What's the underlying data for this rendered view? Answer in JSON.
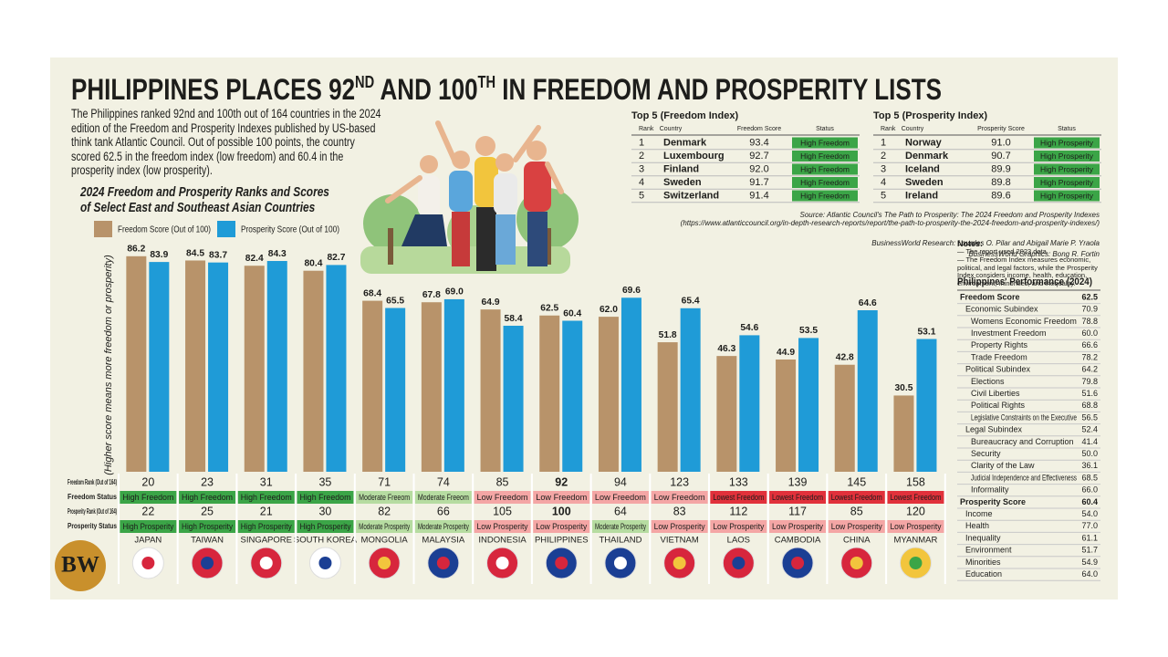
{
  "header": {
    "title": [
      "PHILIPPINES PLACES 92",
      "ND",
      " AND 100",
      "TH",
      " IN FREEDOM AND PROSPERITY LISTS"
    ],
    "intro": "The Philippines ranked 92nd and 100th out of 164 countries in the 2024 edition of the Freedom and Prosperity Indexes published by US-based think tank Atlantic Council. Out of possible 100 points, the country scored 62.5 in the freedom index (low freedom) and 60.4 in the prosperity index (low prosperity).",
    "logo": "BW"
  },
  "status_colors": {
    "High Freedom": {
      "fill": "#3ba547",
      "text": "#ffffff"
    },
    "Moderate Freeom": {
      "fill": "#b6dca1",
      "text": "#1d1d1b"
    },
    "Low Freedom": {
      "fill": "#f4a6a5",
      "text": "#ffffff"
    },
    "Lowest Freedom": {
      "fill": "#e1313b",
      "text": "#ffffff"
    },
    "High Prosperity": {
      "fill": "#3ba547",
      "text": "#ffffff"
    },
    "Moderate Prosperity": {
      "fill": "#b6dca1",
      "text": "#1d1d1b"
    },
    "Low Prosperity": {
      "fill": "#f4a6a5",
      "text": "#ffffff"
    }
  },
  "chart_data": {
    "type": "bar",
    "title": "2024 Freedom and Prosperity Ranks and Scores of Select East and Southeast Asian Countries",
    "ylabel": "(Higher score means more freedom or prosperity)",
    "categories": [
      "JAPAN",
      "TAIWAN",
      "SINGAPORE",
      "SOUTH KOREA",
      "MONGOLIA",
      "MALAYSIA",
      "INDONESIA",
      "PHILIPPINES",
      "THAILAND",
      "VIETNAM",
      "LAOS",
      "CAMBODIA",
      "CHINA",
      "MYANMAR"
    ],
    "highlight": "PHILIPPINES",
    "highlight_color": "#1e9ad6",
    "series": [
      {
        "name": "Freedom Score (Out of 100)",
        "color": "#b8936a",
        "values": [
          86.2,
          84.5,
          82.4,
          80.4,
          68.4,
          67.8,
          64.9,
          62.5,
          62.0,
          51.8,
          46.3,
          44.9,
          42.8,
          30.5
        ],
        "value_labels": [
          "86.2",
          "84.5",
          "82.4",
          "80.4",
          "68.4",
          "67.8",
          "64.9",
          "62.5",
          "62.0",
          "51.8",
          "46.3",
          "44.9",
          "42.8",
          "30.5"
        ]
      },
      {
        "name": "Prosperity Score (Out of 100)",
        "color": "#1f9bd7",
        "values": [
          83.9,
          83.7,
          84.3,
          82.7,
          65.5,
          69.0,
          58.4,
          60.4,
          69.6,
          65.4,
          54.6,
          53.5,
          64.6,
          53.1
        ],
        "value_labels": [
          "83.9",
          "83.7",
          "84.3",
          "82.7",
          "65.5",
          "69.0",
          "58.4",
          "60.4",
          "69.6",
          "65.4",
          "54.6",
          "53.5",
          "64.6",
          "53.1"
        ]
      }
    ],
    "ylim": [
      0,
      100
    ],
    "grid": false,
    "table_rows": [
      {
        "label": "Freedom Rank (Out of 164)",
        "values": [
          20,
          23,
          31,
          35,
          71,
          74,
          85,
          92,
          94,
          123,
          133,
          139,
          145,
          158
        ]
      },
      {
        "label": "Freedom Status",
        "values": [
          "High Freedom",
          "High Freedom",
          "High Freedom",
          "High Freedom",
          "Moderate Freeom",
          "Moderate Freeom",
          "Low Freedom",
          "Low Freedom",
          "Low Freedom",
          "Low Freedom",
          "Lowest Freedom",
          "Lowest Freedom",
          "Lowest Freedom",
          "Lowest Freedom"
        ]
      },
      {
        "label": "Prosperity Rank (Out of 164)",
        "values": [
          22,
          25,
          21,
          30,
          82,
          66,
          105,
          100,
          64,
          83,
          112,
          117,
          85,
          120
        ]
      },
      {
        "label": "Prosperity Status",
        "values": [
          "High Prosperity",
          "High Prosperity",
          "High Prosperity",
          "High Prosperity",
          "Moderate Prosperity",
          "Moderate Prosperity",
          "Low Prosperity",
          "Low Prosperity",
          "Moderate Prosperity",
          "Low Prosperity",
          "Low Prosperity",
          "Low Prosperity",
          "Low Prosperity",
          "Low Prosperity"
        ]
      }
    ]
  },
  "top_tables": [
    {
      "title": "Top 5 (Freedom Index)",
      "columns": [
        "Rank",
        "Country",
        "Freedom Score",
        "Status"
      ],
      "rows": [
        [
          "1",
          "Denmark",
          "93.4",
          "High Freedom"
        ],
        [
          "2",
          "Luxembourg",
          "92.7",
          "High Freedom"
        ],
        [
          "3",
          "Finland",
          "92.0",
          "High Freedom"
        ],
        [
          "4",
          "Sweden",
          "91.7",
          "High Freedom"
        ],
        [
          "5",
          "Switzerland",
          "91.4",
          "High Freedom"
        ]
      ]
    },
    {
      "title": "Top 5 (Prosperity Index)",
      "columns": [
        "Rank",
        "Country",
        "Prosperity Score",
        "Status"
      ],
      "rows": [
        [
          "1",
          "Norway",
          "91.0",
          "High Prosperity"
        ],
        [
          "2",
          "Denmark",
          "90.7",
          "High Prosperity"
        ],
        [
          "3",
          "Iceland",
          "89.9",
          "High Prosperity"
        ],
        [
          "4",
          "Sweden",
          "89.8",
          "High Prosperity"
        ],
        [
          "5",
          "Ireland",
          "89.6",
          "High Prosperity"
        ]
      ]
    }
  ],
  "credits": {
    "source": "Source: Atlantic Council's The Path to Prosperity: The 2024 Freedom and Prosperity Indexes",
    "source_url": "(https://www.atlanticcouncil.org/in-depth-research-reports/report/the-path-to-prosperity-the-2024-freedom-and-prosperity-indexes/)",
    "research": "BusinessWorld Research: Lourdes O. Pilar and Abigail Marie P. Yraola",
    "graphics": "BusinessWorld Graphics: Bong R. Fortin"
  },
  "notes": {
    "title": "Notes:",
    "items": [
      "— The report used 2023 data.",
      "— The Freedom Index measures economic, political, and legal factors, while the Prosperity Index considers income, health, education, environment, minorities, and inequality."
    ]
  },
  "performance": {
    "title": "Philippines' Performance (2024)",
    "rows": [
      {
        "label": "Freedom Score",
        "value": "62.5",
        "children": [
          {
            "label": "Economic Subindex",
            "value": "70.9",
            "children": [
              {
                "label": "Womens Economic Freedom",
                "value": "78.8"
              },
              {
                "label": "Investment Freedom",
                "value": "60.0"
              },
              {
                "label": "Property Rights",
                "value": "66.6"
              },
              {
                "label": "Trade Freedom",
                "value": "78.2"
              }
            ]
          },
          {
            "label": "Political Subindex",
            "value": "64.2",
            "children": [
              {
                "label": "Elections",
                "value": "79.8"
              },
              {
                "label": "Civil Liberties",
                "value": "51.6"
              },
              {
                "label": "Political Rights",
                "value": "68.8"
              },
              {
                "label": "Legislative Constraints on the Executive",
                "value": "56.5"
              }
            ]
          },
          {
            "label": "Legal Subindex",
            "value": "52.4",
            "children": [
              {
                "label": "Bureaucracy and Corruption",
                "value": "41.4"
              },
              {
                "label": "Security",
                "value": "50.0"
              },
              {
                "label": "Clarity of the Law",
                "value": "36.1"
              },
              {
                "label": "Judicial Independence and Effectiveness",
                "value": "68.5"
              },
              {
                "label": "Informality",
                "value": "66.0"
              }
            ]
          }
        ]
      },
      {
        "label": "Prosperity Score",
        "value": "60.4",
        "children": [
          {
            "label": "Income",
            "value": "54.0"
          },
          {
            "label": "Health",
            "value": "77.0"
          },
          {
            "label": "Inequality",
            "value": "61.1"
          },
          {
            "label": "Environment",
            "value": "51.7"
          },
          {
            "label": "Minorities",
            "value": "54.9"
          },
          {
            "label": "Education",
            "value": "64.0"
          }
        ]
      }
    ]
  }
}
